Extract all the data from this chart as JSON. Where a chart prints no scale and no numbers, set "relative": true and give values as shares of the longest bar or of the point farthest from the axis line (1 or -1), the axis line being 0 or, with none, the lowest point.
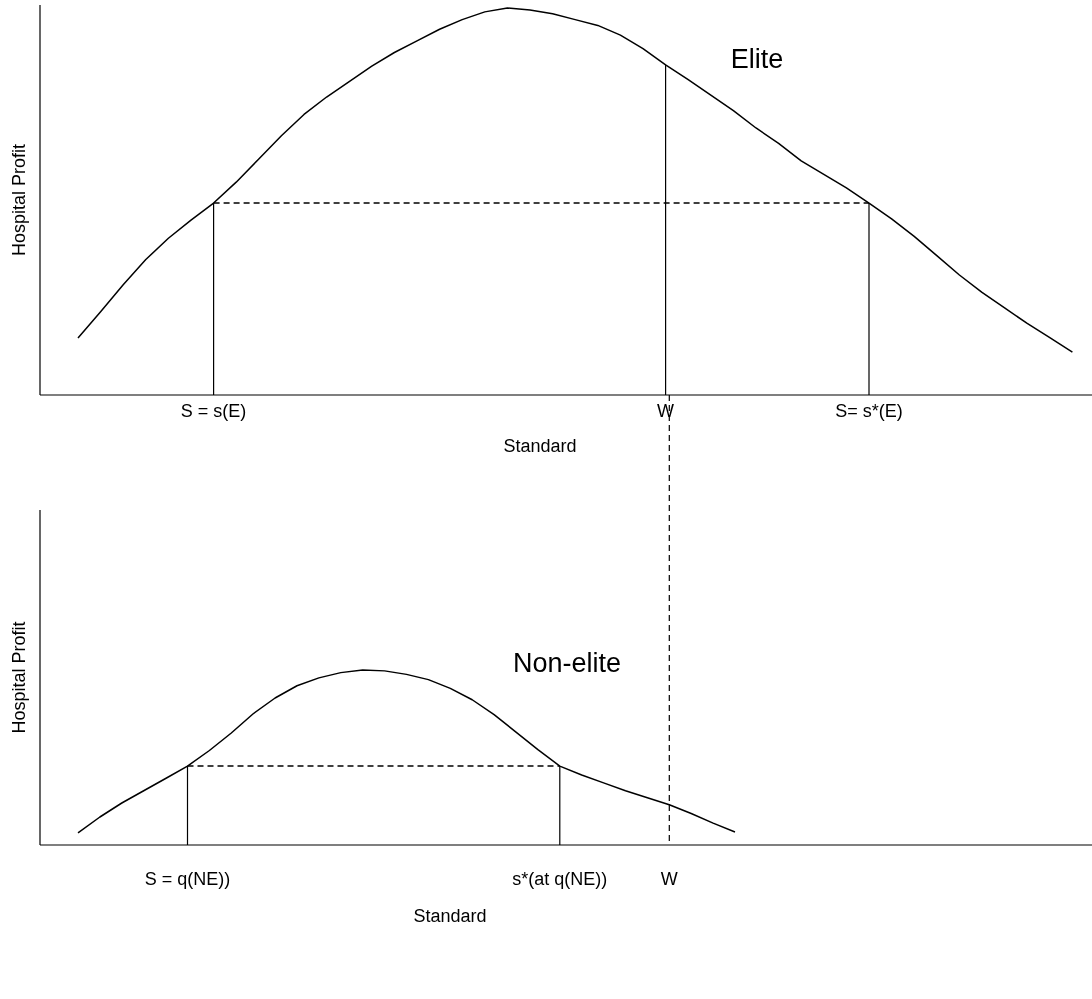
{
  "chart_data": [
    {
      "type": "line",
      "relative": true,
      "xlabel": "Standard",
      "ylabel": "Hospital Profit",
      "line_style": "solid",
      "categories": [
        null,
        null,
        null,
        null,
        null,
        null,
        "S = s(E)",
        null,
        null,
        null,
        null,
        null,
        null,
        null,
        null,
        null,
        null,
        null,
        null,
        null,
        null,
        null,
        null,
        null,
        null,
        null,
        "W",
        null,
        null,
        null,
        null,
        null,
        null,
        null,
        null,
        "S= s*(E)",
        null,
        null,
        null,
        null,
        null,
        null,
        null,
        null,
        null
      ],
      "series": [
        {
          "name": "Elite",
          "color": "#000000",
          "values": [
            0.147,
            0.215,
            0.285,
            0.35,
            0.405,
            0.452,
            0.496,
            0.55,
            0.61,
            0.67,
            0.725,
            0.77,
            0.81,
            0.85,
            0.885,
            0.915,
            0.945,
            0.97,
            0.99,
            1.0,
            0.995,
            0.985,
            0.97,
            0.955,
            0.93,
            0.895,
            0.853,
            0.815,
            0.775,
            0.735,
            0.69,
            0.65,
            0.605,
            0.57,
            0.535,
            0.496,
            0.455,
            0.41,
            0.36,
            0.31,
            0.265,
            0.225,
            0.185,
            0.148,
            0.111
          ]
        },
        {
          "color": "#000000",
          "line_style": "dashed",
          "values": [
            null,
            null,
            null,
            null,
            null,
            null,
            0.496,
            0.496,
            0.496,
            0.496,
            0.496,
            0.496,
            0.496,
            0.496,
            0.496,
            0.496,
            0.496,
            0.496,
            0.496,
            0.496,
            0.496,
            0.496,
            0.496,
            0.496,
            0.496,
            0.496,
            0.496,
            0.496,
            0.496,
            0.496,
            0.496,
            0.496,
            0.496,
            0.496,
            0.496,
            0.496,
            null,
            null,
            null,
            null,
            null,
            null,
            null,
            null,
            null
          ]
        }
      ],
      "ref_lines": [
        {
          "axis": "x",
          "value": "S = s(E)",
          "line_style": "solid",
          "color": "#000000"
        },
        {
          "axis": "x",
          "value": "W",
          "line_style": "solid",
          "color": "#000000"
        },
        {
          "axis": "x",
          "value": "S= s*(E)",
          "line_style": "solid",
          "color": "#000000"
        }
      ]
    },
    {
      "type": "line",
      "relative": true,
      "xlabel": "Standard",
      "ylabel": "Hospital Profit",
      "line_style": "solid",
      "categories": [
        null,
        null,
        null,
        null,
        null,
        "S = q(NE))",
        null,
        null,
        null,
        null,
        null,
        null,
        null,
        null,
        null,
        null,
        null,
        null,
        null,
        null,
        null,
        null,
        "s*(at q(NE))",
        null,
        null,
        null,
        null,
        "W",
        null,
        null,
        null,
        null,
        null,
        null,
        null,
        null,
        null,
        null,
        null,
        null,
        null,
        null,
        null,
        null,
        null,
        null
      ],
      "series": [
        {
          "name": "Non-elite",
          "color": "#000000",
          "values": [
            0.069,
            0.16,
            0.24,
            0.31,
            0.38,
            0.451,
            0.54,
            0.64,
            0.75,
            0.84,
            0.91,
            0.955,
            0.985,
            1.0,
            0.995,
            0.975,
            0.945,
            0.895,
            0.83,
            0.745,
            0.645,
            0.545,
            0.451,
            0.4,
            0.355,
            0.31,
            0.27,
            0.23,
            0.18,
            0.125,
            0.074,
            null,
            null,
            null,
            null,
            null,
            null,
            null,
            null,
            null,
            null,
            null,
            null,
            null,
            null,
            null
          ]
        },
        {
          "color": "#000000",
          "line_style": "dashed",
          "values": [
            null,
            null,
            null,
            null,
            null,
            0.451,
            0.451,
            0.451,
            0.451,
            0.451,
            0.451,
            0.451,
            0.451,
            0.451,
            0.451,
            0.451,
            0.451,
            0.451,
            0.451,
            0.451,
            0.451,
            0.451,
            0.451,
            null,
            null,
            null,
            null,
            null,
            null,
            null,
            null,
            null,
            null,
            null,
            null,
            null,
            null,
            null,
            null,
            null,
            null,
            null,
            null,
            null,
            null,
            null
          ]
        }
      ],
      "ref_lines": [
        {
          "axis": "x",
          "value": "S = q(NE))",
          "line_style": "solid",
          "color": "#000000"
        },
        {
          "axis": "x",
          "value": "s*(at q(NE))",
          "line_style": "solid",
          "color": "#000000"
        },
        {
          "axis": "x",
          "value": "W",
          "line_style": "dashed",
          "color": "#000000"
        }
      ]
    }
  ]
}
